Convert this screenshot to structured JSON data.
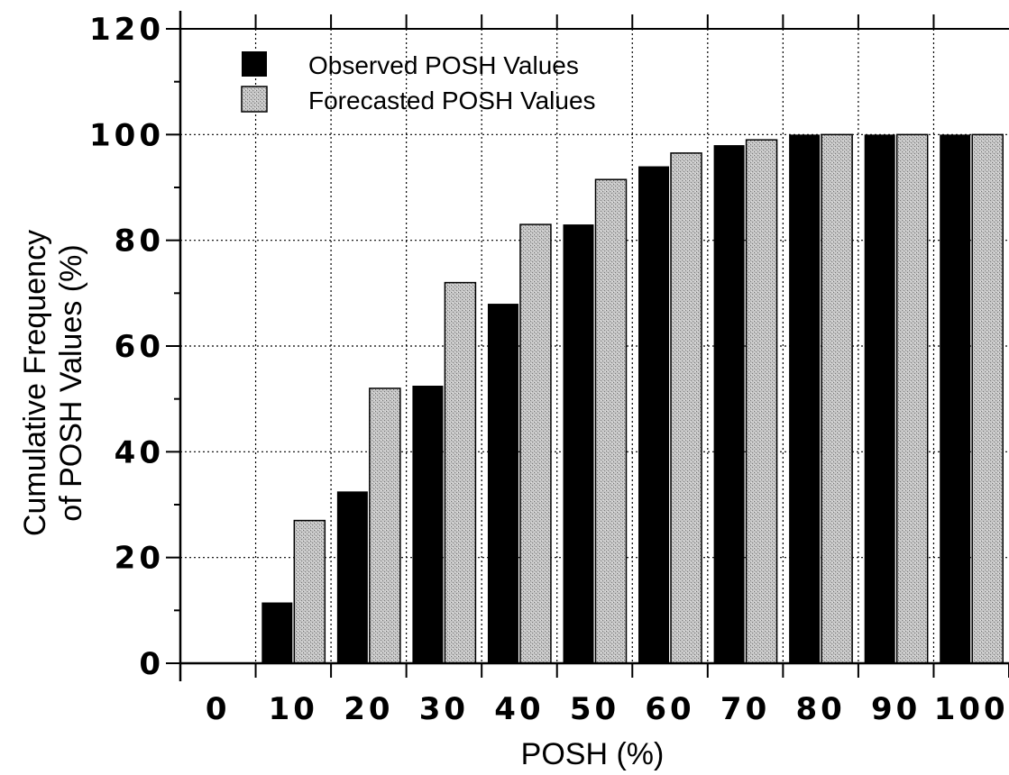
{
  "chart_data": {
    "type": "bar",
    "title": "",
    "xlabel": "POSH (%)",
    "ylabel_lines": [
      "Cumulative  Frequency",
      "of POSH Values (%)"
    ],
    "categories": [
      "0",
      "10",
      "20",
      "30",
      "40",
      "50",
      "60",
      "70",
      "80",
      "90",
      "100"
    ],
    "series": [
      {
        "name": "Observed POSH Values",
        "color": "#000000",
        "values": [
          0,
          11.5,
          32.5,
          52.5,
          68,
          83,
          94,
          98,
          100,
          100,
          100
        ]
      },
      {
        "name": "Forecasted POSH Values",
        "color": "#b4b4b4",
        "values": [
          0,
          27,
          52,
          72,
          83,
          91.5,
          96.5,
          99,
          100,
          100,
          100
        ]
      }
    ],
    "yticks": [
      0,
      20,
      40,
      60,
      80,
      100,
      120
    ],
    "ylim": [
      0,
      120
    ],
    "grid": true,
    "legend_position": "top-left"
  }
}
